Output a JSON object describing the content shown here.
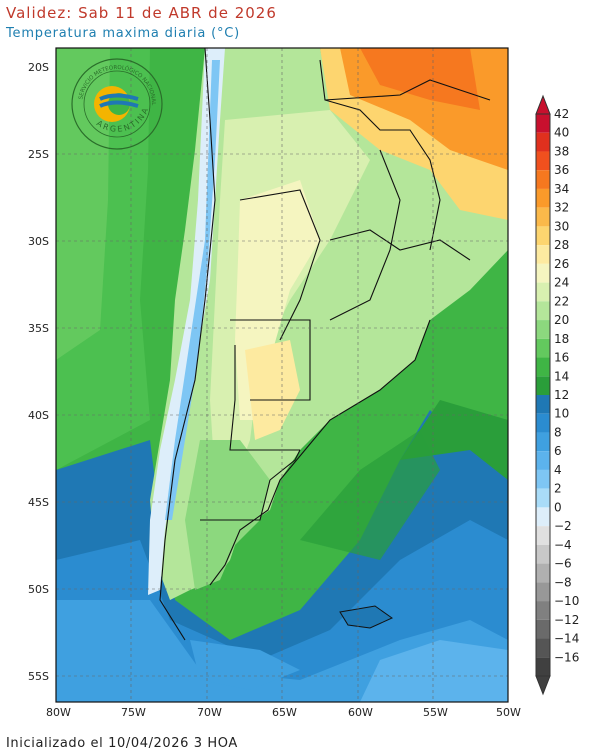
{
  "header": {
    "title": "Validez: Sab 11 de ABR de 2026",
    "subtitle": "Temperatura maxima diaria (°C)"
  },
  "footer": {
    "init": "Inicializado el 10/04/2026 3 HOA"
  },
  "logo": {
    "top_text": "SERVICIO METEOROLÓGICO NACIONAL",
    "bottom_text": "ARGENTINA"
  },
  "axes": {
    "lat_labels": [
      "20S",
      "25S",
      "30S",
      "35S",
      "40S",
      "45S",
      "50S",
      "55S"
    ],
    "lon_labels": [
      "80W",
      "75W",
      "70W",
      "65W",
      "60W",
      "55W",
      "50W"
    ]
  },
  "colorbar": {
    "labels": [
      "42",
      "40",
      "38",
      "36",
      "34",
      "32",
      "30",
      "28",
      "26",
      "24",
      "22",
      "20",
      "18",
      "16",
      "14",
      "12",
      "10",
      "8",
      "6",
      "4",
      "2",
      "0",
      "−2",
      "−4",
      "−6",
      "−8",
      "−10",
      "−12",
      "−14",
      "−16"
    ],
    "colors": [
      "#c8102e",
      "#e0301e",
      "#f0501e",
      "#f6781f",
      "#fa9a2a",
      "#fbb94a",
      "#fdd56f",
      "#fdeaa0",
      "#f5f5c0",
      "#d8f0b0",
      "#b4e69a",
      "#8cd87e",
      "#63c95e",
      "#3fb545",
      "#2a9e3a",
      "#1f78b4",
      "#2b8cd0",
      "#3fa0e0",
      "#5cb3ec",
      "#7ec6f4",
      "#a9dcf8",
      "#ddeefa",
      "#e0e0e0",
      "#c8c8c8",
      "#b0b0b0",
      "#989898",
      "#808080",
      "#6a6a6a",
      "#555555",
      "#404040"
    ]
  },
  "map_legend": {
    "ocean_cold": "#1f78b4",
    "ocean_mid": "#3aa0e0",
    "land_green": "#3fb545",
    "land_yellow": "#fdeaa0",
    "land_orange": "#f6781f"
  }
}
